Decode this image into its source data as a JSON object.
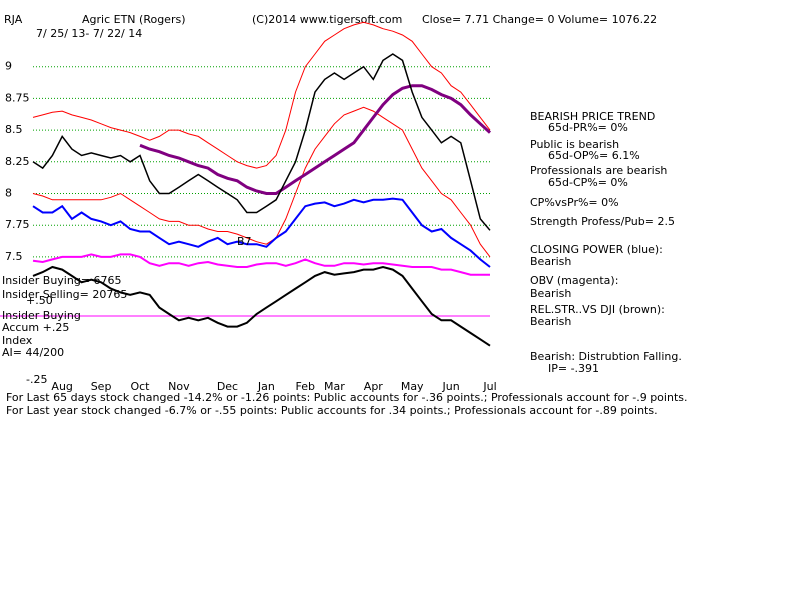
{
  "chart_data": {
    "type": "line",
    "symbol": "RJA",
    "title": "Agric ETN (Rogers)",
    "source": "(C)2014 www.tigersoft.com",
    "quote": "Close=  7.71  Change= 0 Volume= 1076.22",
    "subtitle": "7/ 25/ 13- 7/ 22/ 14",
    "categories": [
      null,
      null,
      null,
      "Aug",
      null,
      null,
      null,
      "Sep",
      null,
      null,
      null,
      "Oct",
      null,
      null,
      null,
      "Nov",
      null,
      null,
      null,
      null,
      "Dec",
      null,
      null,
      null,
      "Jan",
      null,
      null,
      null,
      "Feb",
      null,
      null,
      "Mar",
      null,
      null,
      null,
      "Apr",
      null,
      null,
      null,
      "May",
      null,
      null,
      null,
      "Jun",
      null,
      null,
      null,
      "Jul"
    ],
    "ylim": [
      6.75,
      9.25
    ],
    "yticks": [
      7.5,
      7.75,
      8,
      8.25,
      8.5,
      8.75,
      9
    ],
    "grid": true,
    "series": [
      {
        "color": "#ff0000",
        "values": [
          8.6,
          8.62,
          8.64,
          8.65,
          8.62,
          8.6,
          8.58,
          8.55,
          8.52,
          8.5,
          8.48,
          8.45,
          8.42,
          8.45,
          8.5,
          8.5,
          8.47,
          8.45,
          8.4,
          8.35,
          8.3,
          8.25,
          8.22,
          8.2,
          8.22,
          8.3,
          8.5,
          8.8,
          9.0,
          9.1,
          9.2,
          9.25,
          9.3,
          9.33,
          9.35,
          9.33,
          9.3,
          9.28,
          9.25,
          9.2,
          9.1,
          9.0,
          8.95,
          8.85,
          8.8,
          8.7,
          8.6,
          8.5
        ]
      },
      {
        "color": "#ff0000",
        "values": [
          8.0,
          7.98,
          7.95,
          7.95,
          7.95,
          7.95,
          7.95,
          7.95,
          7.97,
          8.0,
          7.95,
          7.9,
          7.85,
          7.8,
          7.78,
          7.78,
          7.75,
          7.75,
          7.72,
          7.7,
          7.7,
          7.68,
          7.65,
          7.62,
          7.6,
          7.65,
          7.8,
          8.0,
          8.2,
          8.35,
          8.45,
          8.55,
          8.62,
          8.65,
          8.68,
          8.65,
          8.6,
          8.55,
          8.5,
          8.35,
          8.2,
          8.1,
          8.0,
          7.95,
          7.85,
          7.75,
          7.6,
          7.5
        ]
      },
      {
        "color": "#800080",
        "width": 3,
        "values": [
          null,
          null,
          null,
          null,
          null,
          null,
          null,
          null,
          null,
          null,
          null,
          8.38,
          8.35,
          8.33,
          8.3,
          8.28,
          8.25,
          8.22,
          8.2,
          8.15,
          8.12,
          8.1,
          8.05,
          8.02,
          8.0,
          8.0,
          8.05,
          8.1,
          8.15,
          8.2,
          8.25,
          8.3,
          8.35,
          8.4,
          8.5,
          8.6,
          8.7,
          8.78,
          8.83,
          8.85,
          8.85,
          8.82,
          8.78,
          8.75,
          8.7,
          8.62,
          8.55,
          8.48
        ]
      },
      {
        "color": "#0000ff",
        "width": 2,
        "values": [
          7.9,
          7.85,
          7.85,
          7.9,
          7.8,
          7.85,
          7.8,
          7.78,
          7.75,
          7.78,
          7.72,
          7.7,
          7.7,
          7.65,
          7.6,
          7.62,
          7.6,
          7.58,
          7.62,
          7.65,
          7.6,
          7.62,
          7.6,
          7.6,
          7.58,
          7.65,
          7.7,
          7.8,
          7.9,
          7.92,
          7.93,
          7.9,
          7.92,
          7.95,
          7.93,
          7.95,
          7.95,
          7.96,
          7.95,
          7.85,
          7.75,
          7.7,
          7.72,
          7.65,
          7.6,
          7.55,
          7.48,
          7.42
        ]
      },
      {
        "color": "#ff00ff",
        "width": 2,
        "values": [
          7.47,
          7.46,
          7.48,
          7.5,
          7.5,
          7.5,
          7.52,
          7.5,
          7.5,
          7.52,
          7.52,
          7.5,
          7.45,
          7.43,
          7.45,
          7.45,
          7.43,
          7.45,
          7.46,
          7.44,
          7.43,
          7.42,
          7.42,
          7.44,
          7.45,
          7.45,
          7.43,
          7.45,
          7.48,
          7.45,
          7.43,
          7.43,
          7.45,
          7.45,
          7.44,
          7.45,
          7.45,
          7.44,
          7.43,
          7.42,
          7.42,
          7.42,
          7.4,
          7.4,
          7.38,
          7.36,
          7.36,
          7.36
        ]
      },
      {
        "color": "#000000",
        "width": 2,
        "values": [
          7.35,
          7.38,
          7.42,
          7.4,
          7.35,
          7.3,
          7.32,
          7.3,
          7.25,
          7.22,
          7.2,
          7.22,
          7.2,
          7.1,
          7.05,
          7.0,
          7.02,
          7.0,
          7.02,
          6.98,
          6.95,
          6.95,
          6.98,
          7.05,
          7.1,
          7.15,
          7.2,
          7.25,
          7.3,
          7.35,
          7.38,
          7.36,
          7.37,
          7.38,
          7.4,
          7.4,
          7.42,
          7.4,
          7.35,
          7.25,
          7.15,
          7.05,
          7.0,
          7.0,
          6.95,
          6.9,
          6.85,
          6.8
        ]
      },
      {
        "color": "#000000",
        "width": 1.5,
        "values": [
          8.25,
          8.2,
          8.3,
          8.45,
          8.35,
          8.3,
          8.32,
          8.3,
          8.28,
          8.3,
          8.25,
          8.3,
          8.1,
          8.0,
          8.0,
          8.05,
          8.1,
          8.15,
          8.1,
          8.05,
          8.0,
          7.95,
          7.85,
          7.85,
          7.9,
          7.95,
          8.1,
          8.25,
          8.5,
          8.8,
          8.9,
          8.95,
          8.9,
          8.95,
          9.0,
          8.9,
          9.05,
          9.1,
          9.05,
          8.8,
          8.6,
          8.5,
          8.4,
          8.45,
          8.4,
          8.1,
          7.8,
          7.71
        ]
      }
    ],
    "signal": "B7",
    "left_notes": [
      "Insider Buying= 6765",
      "Insider Selling= 20765",
      "+.50",
      "Insider Buying",
      "Accum  +.25",
      "Index",
      "AI= 44/200",
      "-.25"
    ],
    "right_notes": [
      "BEARISH PRICE TREND",
      "65d-PR%= 0%",
      "Public is bearish",
      "65d-OP%= 6.1%",
      "Professionals are bearish",
      "65d-CP%= 0%",
      "CP%vsPr%=  0%",
      "Strength Profess/Pub= 2.5",
      "CLOSING POWER (blue):",
      "Bearish",
      "OBV (magenta):",
      "Bearish",
      "REL.STR..VS DJI (brown):",
      "Bearish",
      "Bearish: Distrubtion Falling.",
      "IP= -.391"
    ],
    "footer": [
      "For Last 65 days stock changed -14.2% or -1.26 points:  Public accounts for -.36 points.;  Professionals account for -.9 points.",
      "For Last year stock changed -6.7% or -.55 points:  Public accounts for  .34 points.;  Professionals account for -.89 points."
    ]
  }
}
